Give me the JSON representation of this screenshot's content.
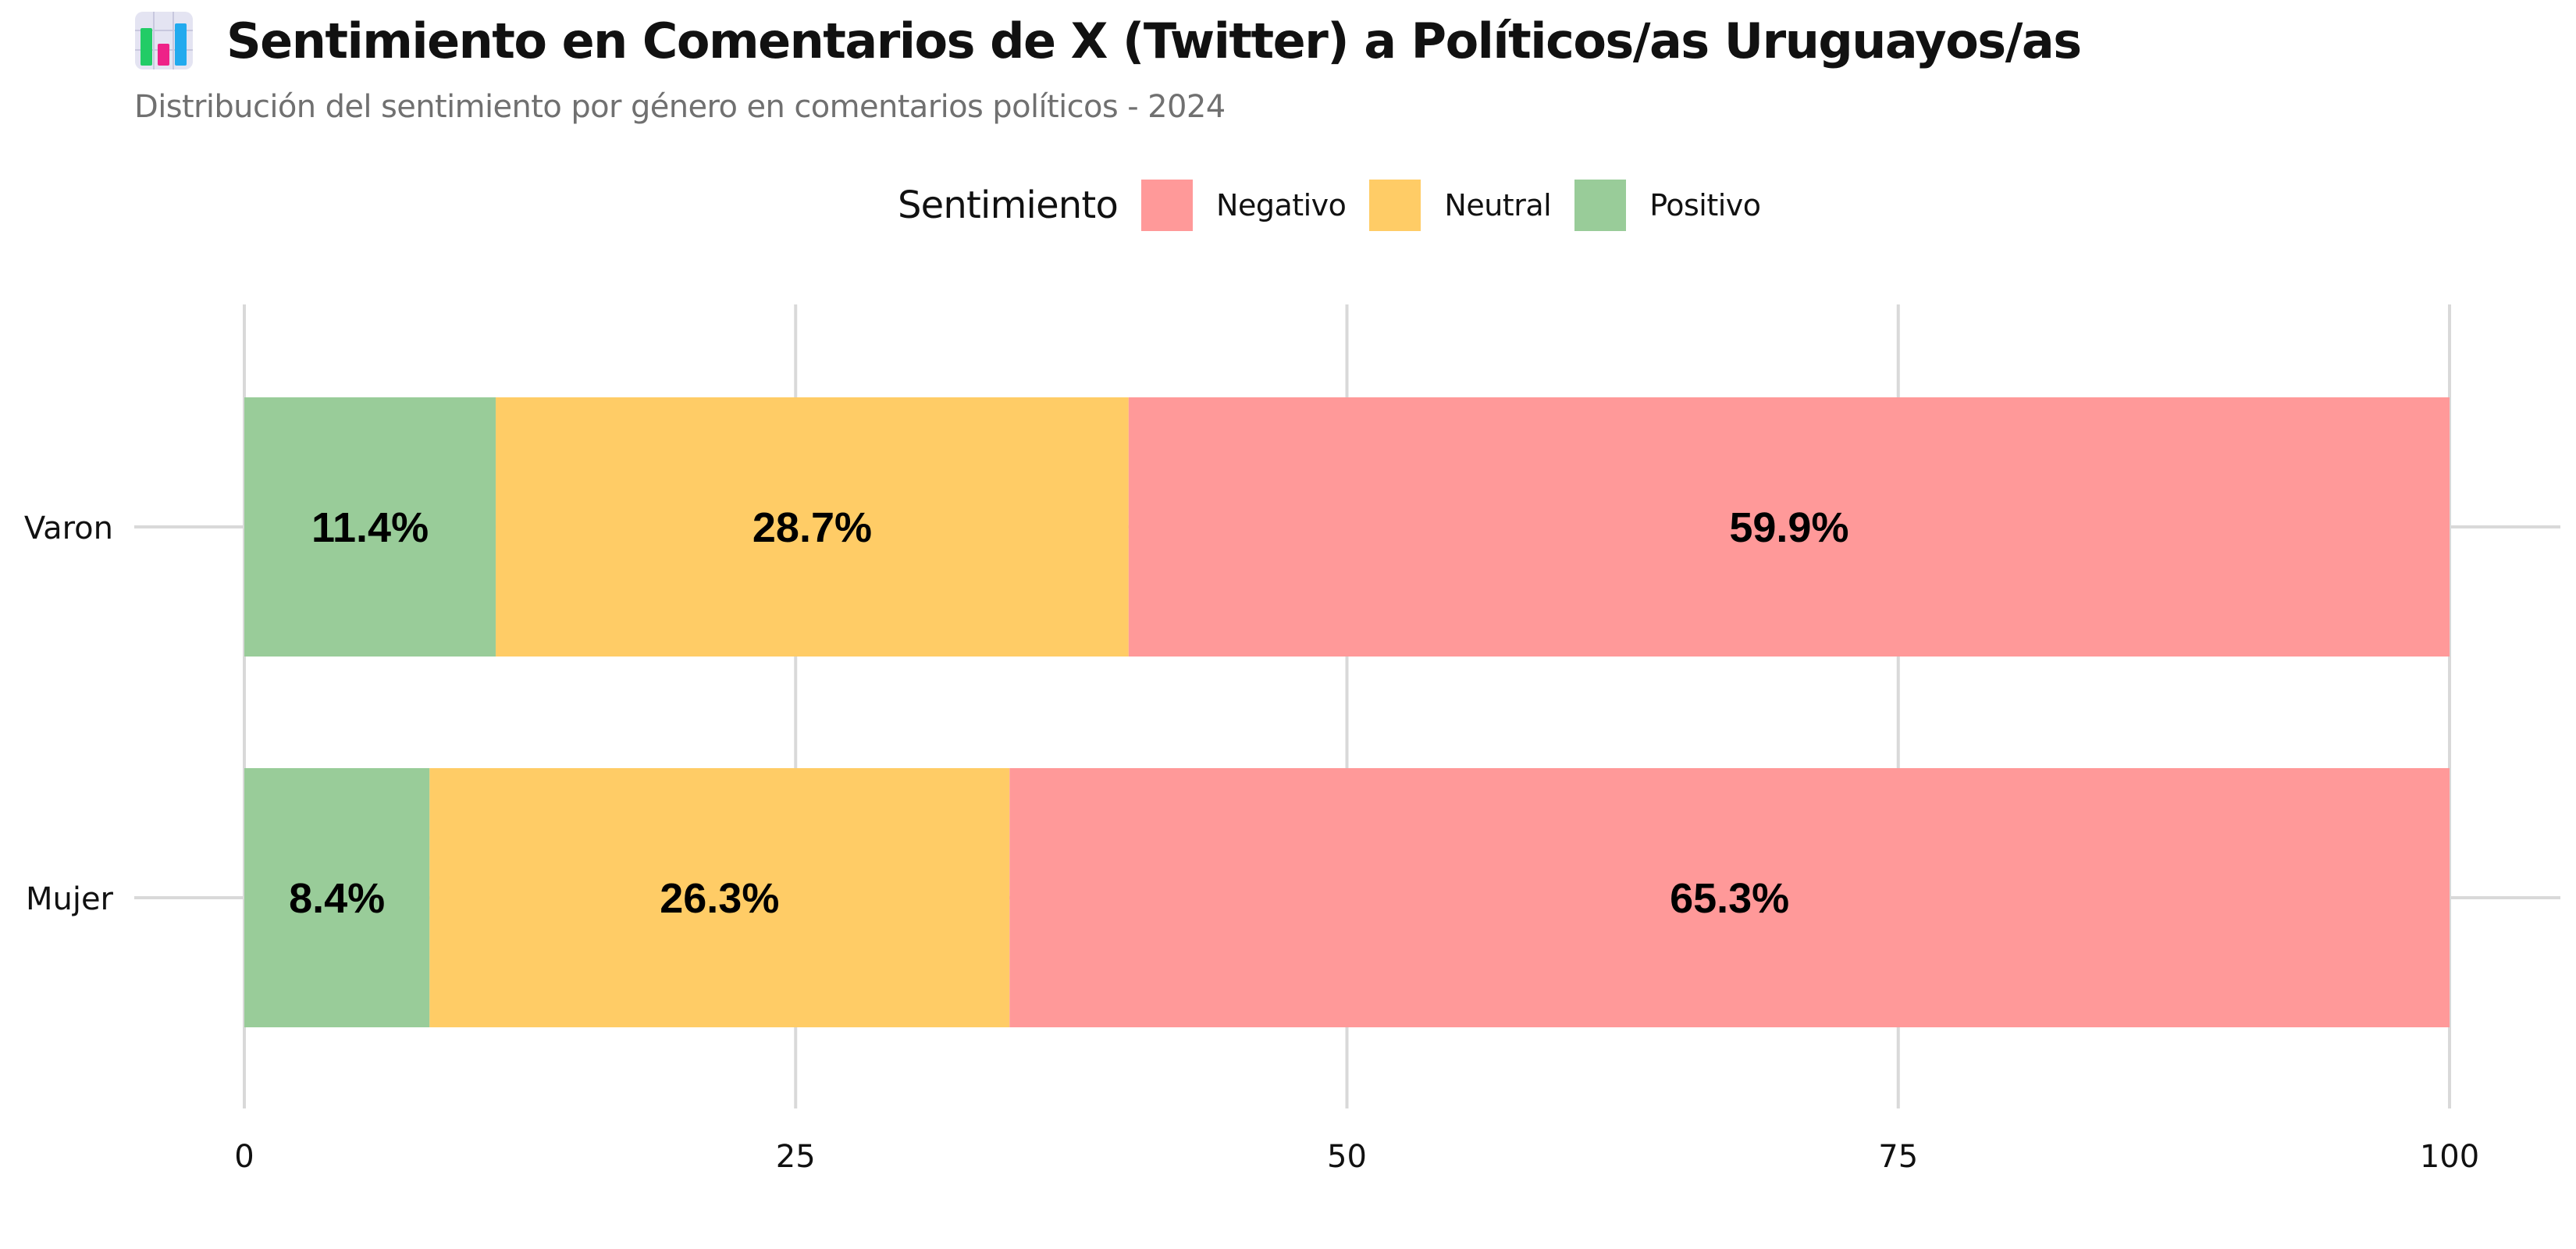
{
  "title": "Sentimiento en Comentarios de X (Twitter) a Políticos/as Uruguayos/as",
  "subtitle": "Distribución del sentimiento por género en comentarios políticos - 2024",
  "icon": "bar-chart-icon",
  "legend": {
    "title": "Sentimiento",
    "items": [
      {
        "label": "Negativo",
        "color": "#FF9999"
      },
      {
        "label": "Neutral",
        "color": "#FFCC66"
      },
      {
        "label": "Positivo",
        "color": "#99CC99"
      }
    ]
  },
  "chart_data": {
    "type": "bar",
    "orientation": "horizontal",
    "stacked": true,
    "categories": [
      "Varon",
      "Mujer"
    ],
    "series": [
      {
        "name": "Positivo",
        "color": "#99CC99",
        "values": [
          11.4,
          8.4
        ],
        "labels": [
          "11.4%",
          "8.4%"
        ]
      },
      {
        "name": "Neutral",
        "color": "#FFCC66",
        "values": [
          28.7,
          26.3
        ],
        "labels": [
          "28.7%",
          "26.3%"
        ]
      },
      {
        "name": "Negativo",
        "color": "#FF9999",
        "values": [
          59.9,
          65.3
        ],
        "labels": [
          "59.9%",
          "65.3%"
        ]
      }
    ],
    "xlim": [
      0,
      100
    ],
    "xticks": [
      0,
      25,
      50,
      75,
      100
    ],
    "xtick_labels": [
      "0",
      "25",
      "50",
      "75",
      "100"
    ],
    "grid": true,
    "legend_position": "top"
  }
}
